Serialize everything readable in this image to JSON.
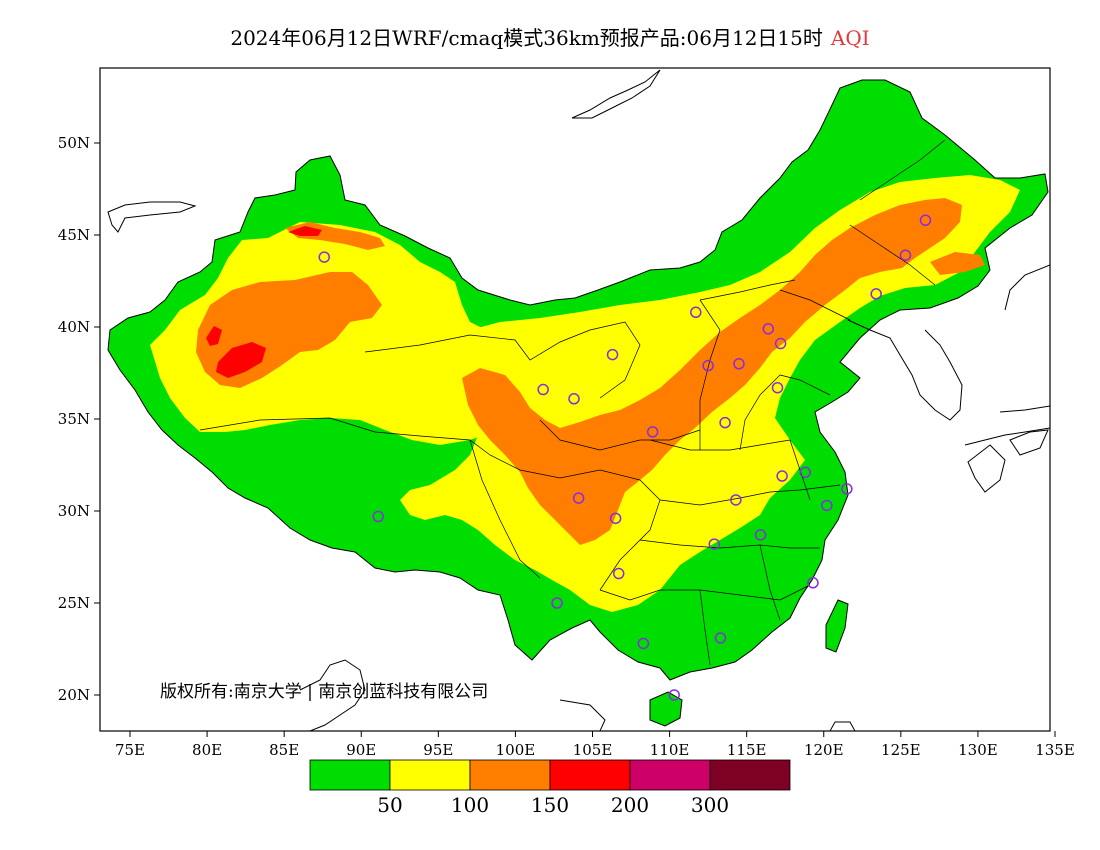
{
  "title": {
    "main": "2024年06月12日WRF/cmaq模式36km预报产品:06月12日15时",
    "variable": "AQI",
    "variable_color": "#e23a3a"
  },
  "map": {
    "lat_labels": [
      "50N",
      "45N",
      "40N",
      "35N",
      "30N",
      "25N",
      "20N"
    ],
    "lon_labels": [
      "75E",
      "80E",
      "85E",
      "90E",
      "95E",
      "100E",
      "105E",
      "110E",
      "115E",
      "120E",
      "125E",
      "130E",
      "135E"
    ],
    "lon_range": [
      73,
      135
    ],
    "lat_range": [
      18,
      54
    ],
    "copyright": "版权所有:南京大学 | 南京创蓝科技有限公司",
    "station_marker_color": "#8a2be2",
    "stations": [
      [
        87.6,
        43.8
      ],
      [
        91.1,
        29.7
      ],
      [
        101.8,
        36.6
      ],
      [
        103.8,
        36.1
      ],
      [
        106.3,
        38.5
      ],
      [
        111.7,
        40.8
      ],
      [
        112.5,
        37.9
      ],
      [
        114.5,
        38.0
      ],
      [
        116.4,
        39.9
      ],
      [
        117.2,
        39.1
      ],
      [
        117.0,
        36.7
      ],
      [
        113.6,
        34.8
      ],
      [
        108.9,
        34.3
      ],
      [
        104.1,
        30.7
      ],
      [
        106.5,
        29.6
      ],
      [
        106.7,
        26.6
      ],
      [
        102.7,
        25.0
      ],
      [
        108.3,
        22.8
      ],
      [
        113.3,
        23.1
      ],
      [
        110.3,
        20.0
      ],
      [
        112.9,
        28.2
      ],
      [
        114.3,
        30.6
      ],
      [
        115.9,
        28.7
      ],
      [
        117.3,
        31.9
      ],
      [
        118.8,
        32.1
      ],
      [
        120.2,
        30.3
      ],
      [
        121.5,
        31.2
      ],
      [
        119.3,
        26.1
      ],
      [
        123.4,
        41.8
      ],
      [
        125.3,
        43.9
      ],
      [
        126.6,
        45.8
      ]
    ]
  },
  "legend": {
    "thresholds": [
      "50",
      "100",
      "150",
      "200",
      "300"
    ],
    "colors": [
      "#00dd00",
      "#ffff00",
      "#ff7e00",
      "#ff0000",
      "#cc0066",
      "#7e0023"
    ],
    "categories": [
      "0-50",
      "50-100",
      "100-150",
      "150-200",
      "200-300",
      ">300"
    ]
  },
  "colors": {
    "good": "#00dd00",
    "moderate": "#ffff00",
    "usg": "#ff7e00",
    "unhealthy": "#ff0000"
  }
}
